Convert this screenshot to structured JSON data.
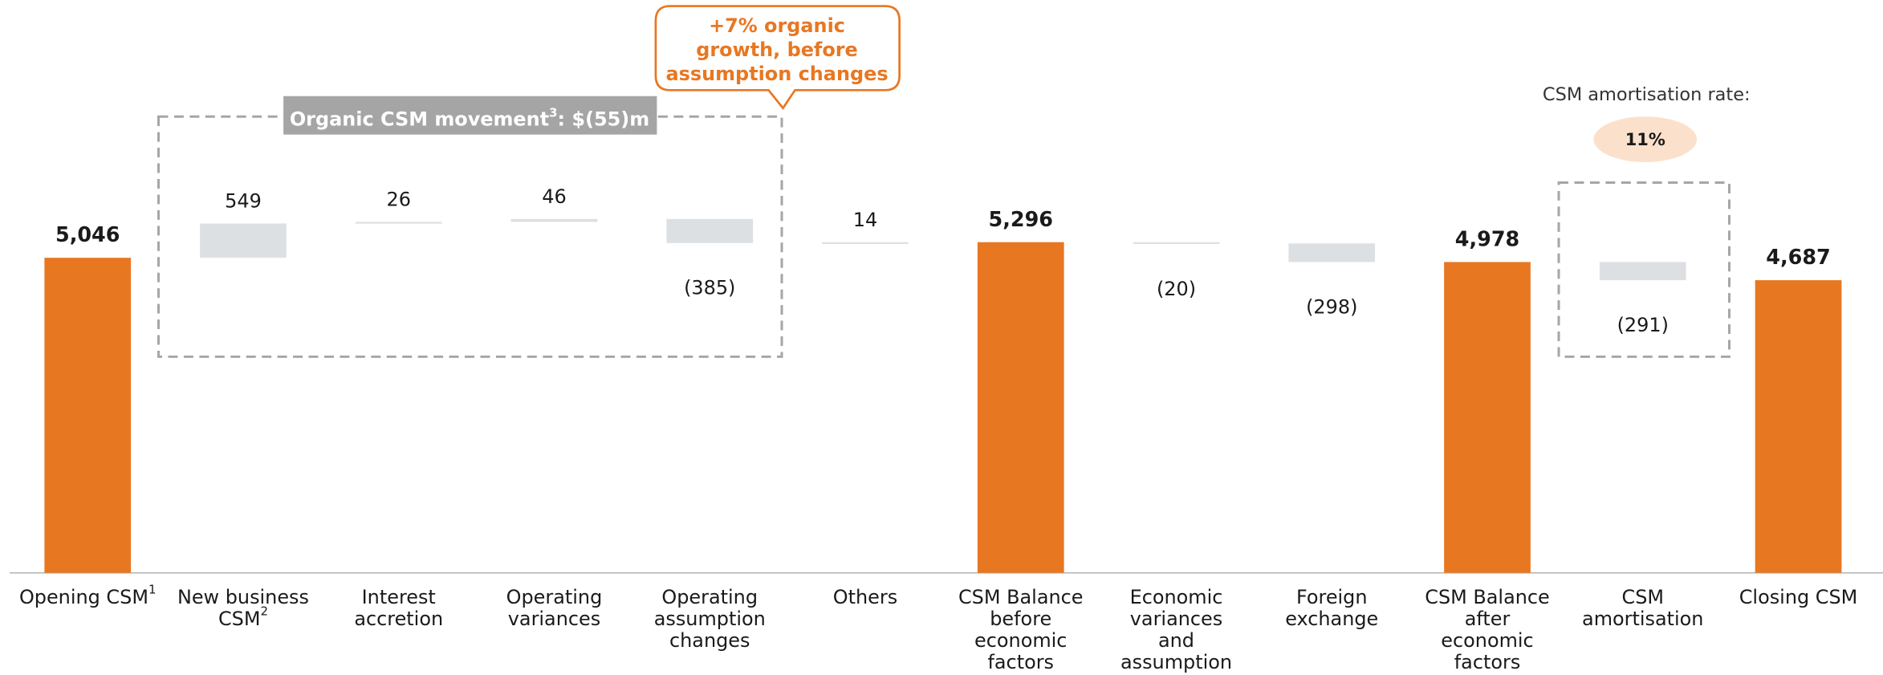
{
  "chart_data": {
    "type": "waterfall",
    "categories": [
      "Opening CSM",
      "New business CSM",
      "Interest accretion",
      "Operating variances",
      "Operating assumption changes",
      "Others",
      "CSM Balance before economic factors",
      "Economic variances and assumption change",
      "Foreign exchange",
      "CSM Balance after economic factors",
      "CSM amortisation",
      "Closing CSM"
    ],
    "category_notes": [
      "1",
      "2",
      null,
      null,
      null,
      null,
      null,
      null,
      null,
      null,
      null,
      null
    ],
    "bar_types": [
      "total",
      "delta",
      "delta",
      "delta",
      "delta",
      "delta",
      "total",
      "delta",
      "delta",
      "total",
      "delta",
      "total"
    ],
    "values": [
      5046,
      549,
      26,
      46,
      -385,
      14,
      5296,
      -20,
      -298,
      4978,
      -291,
      4687
    ],
    "value_labels": [
      "5,046",
      "549",
      "26",
      "46",
      "(385)",
      "14",
      "5,296",
      "(20)",
      "(298)",
      "4,978",
      "(291)",
      "4,687"
    ],
    "total_color": "#E87722",
    "delta_color": "#DDE0E3",
    "ylim": [
      0,
      9000
    ],
    "callout": [
      "+7% organic",
      "growth, before",
      "assumption changes"
    ],
    "organic_label": [
      "Organic CSM movement",
      "3",
      ": $(55)m"
    ],
    "amortisation_rate_label": "CSM amortisation rate:",
    "amortisation_rate": "11%"
  }
}
